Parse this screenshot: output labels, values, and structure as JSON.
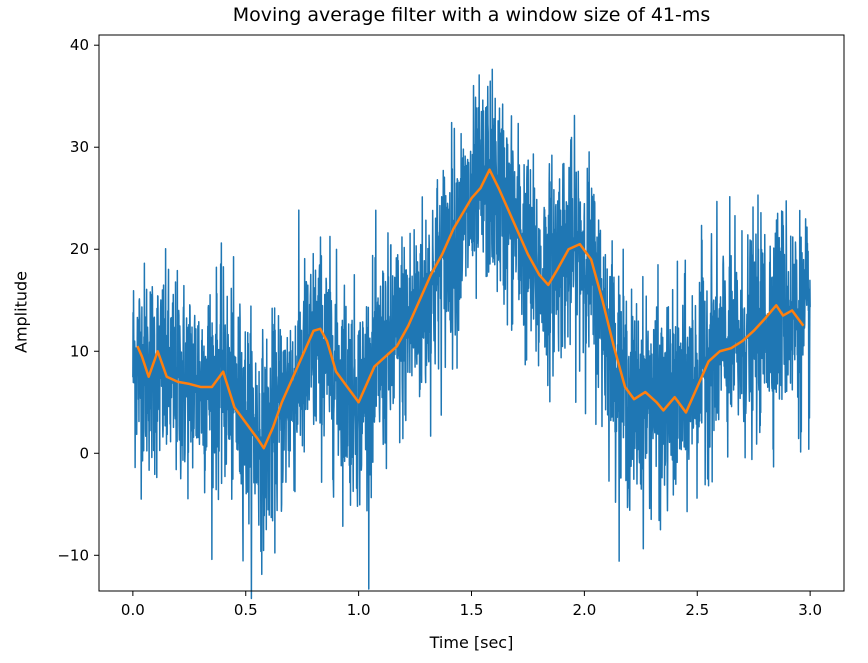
{
  "chart_data": {
    "type": "line",
    "title": "Moving average filter with a window size of 41-ms",
    "xlabel": "Time [sec]",
    "ylabel": "Amplitude",
    "xlim": [
      -0.15,
      3.15
    ],
    "ylim": [
      -13.5,
      41
    ],
    "xticks": [
      0.0,
      0.5,
      1.0,
      1.5,
      2.0,
      2.5,
      3.0
    ],
    "xtick_labels": [
      "0.0",
      "0.5",
      "1.0",
      "1.5",
      "2.0",
      "2.5",
      "3.0"
    ],
    "yticks": [
      -10,
      0,
      10,
      20,
      30,
      40
    ],
    "ytick_labels": [
      "−10",
      "0",
      "10",
      "20",
      "30",
      "40"
    ],
    "grid": false,
    "series": [
      {
        "color": "#1f77b4",
        "noise_amplitude": 5,
        "x": [
          0.0,
          0.1,
          0.2,
          0.3,
          0.4,
          0.5,
          0.58,
          0.7,
          0.82,
          0.9,
          1.0,
          1.1,
          1.2,
          1.3,
          1.4,
          1.5,
          1.58,
          1.7,
          1.8,
          1.9,
          2.0,
          2.1,
          2.2,
          2.3,
          2.35,
          2.45,
          2.55,
          2.7,
          2.8,
          2.88,
          3.0
        ],
        "y": [
          9,
          8,
          7,
          7,
          7,
          3.5,
          1,
          6,
          11,
          8,
          5,
          9,
          12,
          15,
          20,
          24,
          27,
          22,
          16.5,
          20,
          20,
          12,
          5,
          5.5,
          4,
          6,
          10,
          10.5,
          13,
          14.5,
          12
        ]
      },
      {
        "color": "#ff7f0e",
        "x": [
          0.02,
          0.04,
          0.07,
          0.11,
          0.15,
          0.2,
          0.25,
          0.3,
          0.35,
          0.4,
          0.45,
          0.5,
          0.55,
          0.58,
          0.62,
          0.66,
          0.7,
          0.75,
          0.8,
          0.83,
          0.86,
          0.9,
          0.95,
          1.0,
          1.03,
          1.07,
          1.12,
          1.17,
          1.22,
          1.27,
          1.32,
          1.37,
          1.42,
          1.46,
          1.5,
          1.54,
          1.58,
          1.62,
          1.66,
          1.7,
          1.75,
          1.8,
          1.84,
          1.88,
          1.93,
          1.98,
          2.03,
          2.08,
          2.13,
          2.18,
          2.22,
          2.27,
          2.32,
          2.35,
          2.4,
          2.45,
          2.5,
          2.55,
          2.6,
          2.65,
          2.7,
          2.75,
          2.8,
          2.85,
          2.88,
          2.92,
          2.97
        ],
        "y": [
          10.5,
          9.5,
          7.5,
          10,
          7.5,
          7,
          6.8,
          6.5,
          6.5,
          8,
          4.5,
          3,
          1.5,
          0.5,
          2.5,
          5,
          7,
          9.5,
          12,
          12.2,
          11,
          8,
          6.5,
          5,
          6.5,
          8.5,
          9.5,
          10.5,
          12.5,
          15,
          17.5,
          19.5,
          22,
          23.5,
          25,
          26,
          27.8,
          26,
          24,
          22,
          19.5,
          17.5,
          16.5,
          18,
          20,
          20.5,
          19,
          15,
          10.5,
          6.5,
          5.3,
          6,
          5,
          4.2,
          5.5,
          4,
          6.5,
          9,
          10,
          10.3,
          11,
          12,
          13.2,
          14.5,
          13.5,
          14,
          12.5
        ]
      }
    ]
  }
}
